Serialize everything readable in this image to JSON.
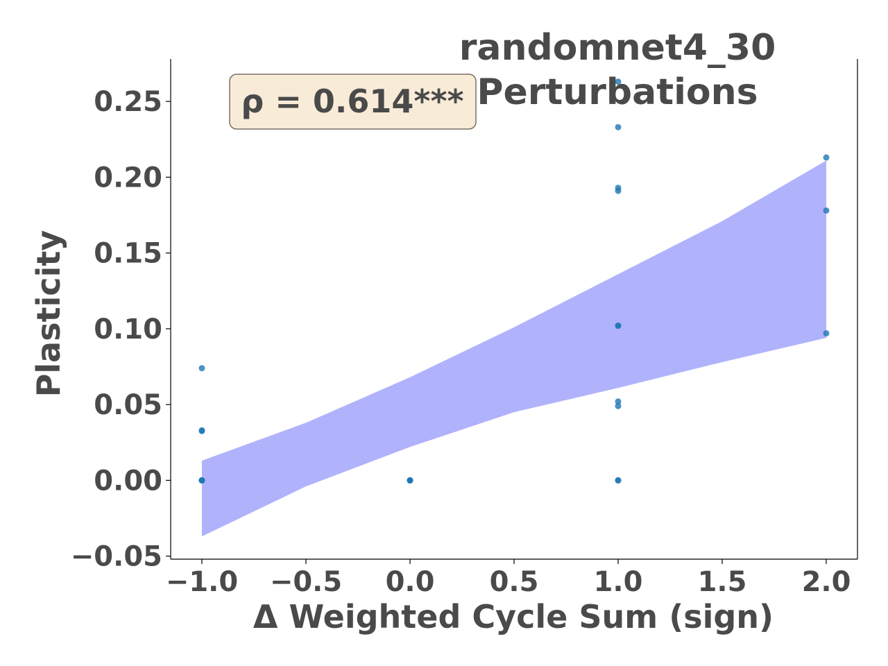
{
  "chart_data": {
    "type": "scatter",
    "title_lines": [
      "randomnet4_30",
      "Perturbations"
    ],
    "xlabel": "Δ Weighted Cycle Sum (sign)",
    "ylabel": "Plasticity",
    "xlim": [
      -1.15,
      2.15
    ],
    "ylim": [
      -0.052,
      0.278
    ],
    "x_ticks": [
      -1.0,
      -0.5,
      0.0,
      0.5,
      1.0,
      1.5,
      2.0
    ],
    "x_tick_labels": [
      "−1.0",
      "−0.5",
      "0.0",
      "0.5",
      "1.0",
      "1.5",
      "2.0"
    ],
    "y_ticks": [
      -0.05,
      0.0,
      0.05,
      0.1,
      0.15,
      0.2,
      0.25
    ],
    "y_tick_labels": [
      "−0.05",
      "0.00",
      "0.05",
      "0.10",
      "0.15",
      "0.20",
      "0.25"
    ],
    "annotation": "ρ = 0.614***",
    "colors": {
      "points": "#1f77b4",
      "band": "#b0b3fb",
      "text": "#4a4a4a",
      "annotation_bg": "#f8ecd8",
      "annotation_border": "#7a6e66"
    },
    "points": [
      {
        "x": -1,
        "y": 0.074
      },
      {
        "x": -1,
        "y": 0.033
      },
      {
        "x": -1,
        "y": 0.0325
      },
      {
        "x": -1,
        "y": 0.0
      },
      {
        "x": -1,
        "y": 0.0
      },
      {
        "x": -1,
        "y": 0.0
      },
      {
        "x": 0,
        "y": 0.0
      },
      {
        "x": 0,
        "y": 0.0
      },
      {
        "x": 0,
        "y": 0.0
      },
      {
        "x": 0,
        "y": 0.0
      },
      {
        "x": 1,
        "y": 0.263
      },
      {
        "x": 1,
        "y": 0.233
      },
      {
        "x": 1,
        "y": 0.193
      },
      {
        "x": 1,
        "y": 0.191
      },
      {
        "x": 1,
        "y": 0.102
      },
      {
        "x": 1,
        "y": 0.102
      },
      {
        "x": 1,
        "y": 0.052
      },
      {
        "x": 1,
        "y": 0.049
      },
      {
        "x": 1,
        "y": 0.0
      },
      {
        "x": 1,
        "y": 0.0
      },
      {
        "x": 2,
        "y": 0.213
      },
      {
        "x": 2,
        "y": 0.178
      },
      {
        "x": 2,
        "y": 0.097
      }
    ],
    "confidence_band": {
      "x": [
        -1.0,
        -0.5,
        0.0,
        0.5,
        1.0,
        1.5,
        2.0
      ],
      "upper": [
        0.013,
        0.038,
        0.068,
        0.101,
        0.136,
        0.171,
        0.211
      ],
      "lower": [
        -0.037,
        -0.004,
        0.022,
        0.045,
        0.061,
        0.078,
        0.094
      ]
    }
  }
}
